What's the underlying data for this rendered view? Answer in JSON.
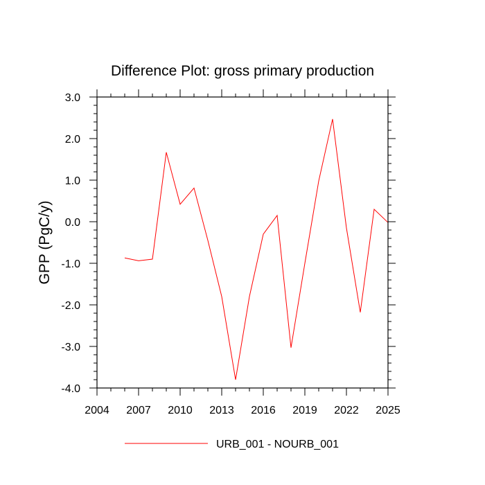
{
  "chart_data": {
    "type": "line",
    "title": "Difference Plot: gross primary production",
    "xlabel": "",
    "ylabel": "GPP  (PgC/y)",
    "xlim": [
      2004,
      2025
    ],
    "ylim": [
      -4.0,
      3.0
    ],
    "xticks": [
      2004,
      2007,
      2010,
      2013,
      2016,
      2019,
      2022,
      2025
    ],
    "xtick_labels": [
      "2004",
      "2007",
      "2010",
      "2013",
      "2016",
      "2019",
      "2022",
      "2025"
    ],
    "yticks": [
      -4.0,
      -3.0,
      -2.0,
      -1.0,
      0.0,
      1.0,
      2.0,
      3.0
    ],
    "ytick_labels": [
      "-4.0",
      "-3.0",
      "-2.0",
      "-1.0",
      "0.0",
      "1.0",
      "2.0",
      "3.0"
    ],
    "x_minor_step": 1,
    "y_minor_step": 0.2,
    "grid": false,
    "legend_position": "bottom-center",
    "series": [
      {
        "name": "URB_001 - NOURB_001",
        "color": "#ff0000",
        "x": [
          2006,
          2007,
          2008,
          2009,
          2010,
          2011,
          2012,
          2013,
          2014,
          2015,
          2016,
          2017,
          2018,
          2019,
          2020,
          2021,
          2022,
          2023,
          2024,
          2025
        ],
        "y": [
          -0.87,
          -0.94,
          -0.9,
          1.67,
          0.42,
          0.81,
          -0.45,
          -1.8,
          -3.8,
          -1.8,
          -0.3,
          0.15,
          -3.03,
          -1.0,
          0.98,
          2.47,
          -0.15,
          -2.18,
          0.3,
          -0.02
        ]
      }
    ]
  }
}
